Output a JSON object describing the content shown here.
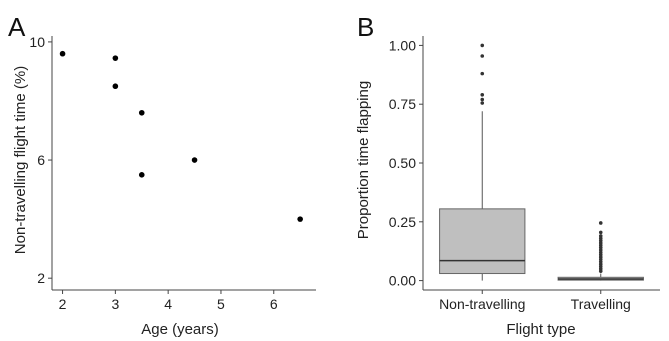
{
  "chart_data": [
    {
      "panel_label": "A",
      "type": "scatter",
      "xlabel": "Age (years)",
      "ylabel": "Non-travelling flight time (%)",
      "xlim": [
        1.8,
        6.8
      ],
      "ylim": [
        1.6,
        10.2
      ],
      "xticks": [
        "2",
        "3",
        "4",
        "5",
        "6"
      ],
      "yticks": [
        "2",
        "6",
        "10"
      ],
      "points": [
        {
          "x": 2.0,
          "y": 9.6
        },
        {
          "x": 3.0,
          "y": 9.45
        },
        {
          "x": 3.0,
          "y": 8.5
        },
        {
          "x": 3.5,
          "y": 7.6
        },
        {
          "x": 3.5,
          "y": 5.5
        },
        {
          "x": 4.5,
          "y": 6.0
        },
        {
          "x": 6.5,
          "y": 4.0
        }
      ]
    },
    {
      "panel_label": "B",
      "type": "box",
      "xlabel": "Flight type",
      "ylabel": "Proportion time flapping",
      "ylim": [
        -0.04,
        1.04
      ],
      "yticks": [
        "0.00",
        "0.25",
        "0.50",
        "0.75",
        "1.00"
      ],
      "categories": [
        "Non-travelling",
        "Travelling"
      ],
      "box_color": "#bfbfbf",
      "boxes": [
        {
          "category": "Non-travelling",
          "q1": 0.03,
          "median": 0.085,
          "q3": 0.305,
          "whisker_low": 0.0,
          "whisker_high": 0.72,
          "outliers": [
            1.0,
            0.955,
            0.88,
            0.79,
            0.77,
            0.755
          ]
        },
        {
          "category": "Travelling",
          "q1": 0.002,
          "median": 0.007,
          "q3": 0.014,
          "whisker_low": 0.0,
          "whisker_high": 0.03,
          "outliers": [
            0.245,
            0.205,
            0.19,
            0.18,
            0.17,
            0.16,
            0.15,
            0.14,
            0.13,
            0.12,
            0.11,
            0.1,
            0.09,
            0.08,
            0.07,
            0.06,
            0.05,
            0.04
          ]
        }
      ]
    }
  ]
}
